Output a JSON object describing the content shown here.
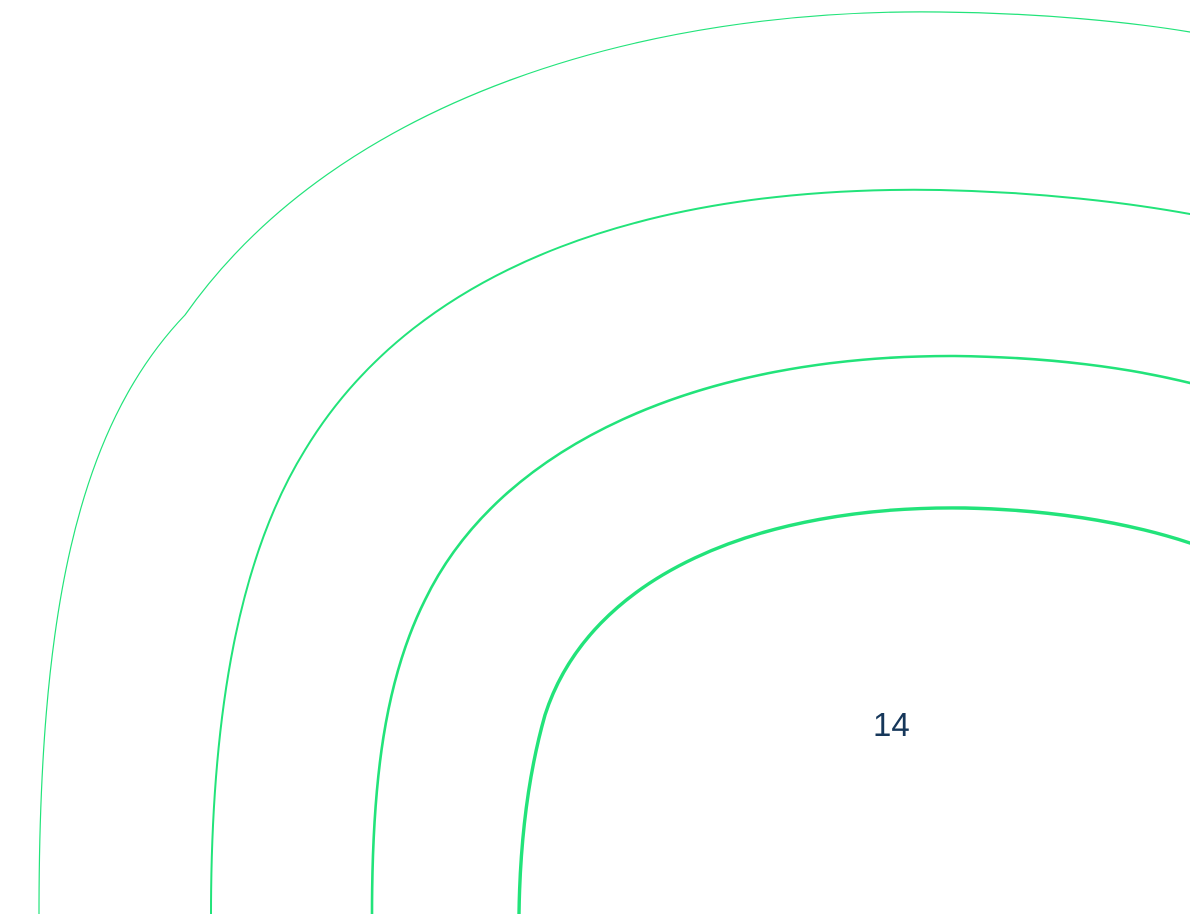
{
  "page": {
    "number": "14"
  },
  "decoration": {
    "arc_color": "#22e37a",
    "text_color": "#16375a"
  }
}
